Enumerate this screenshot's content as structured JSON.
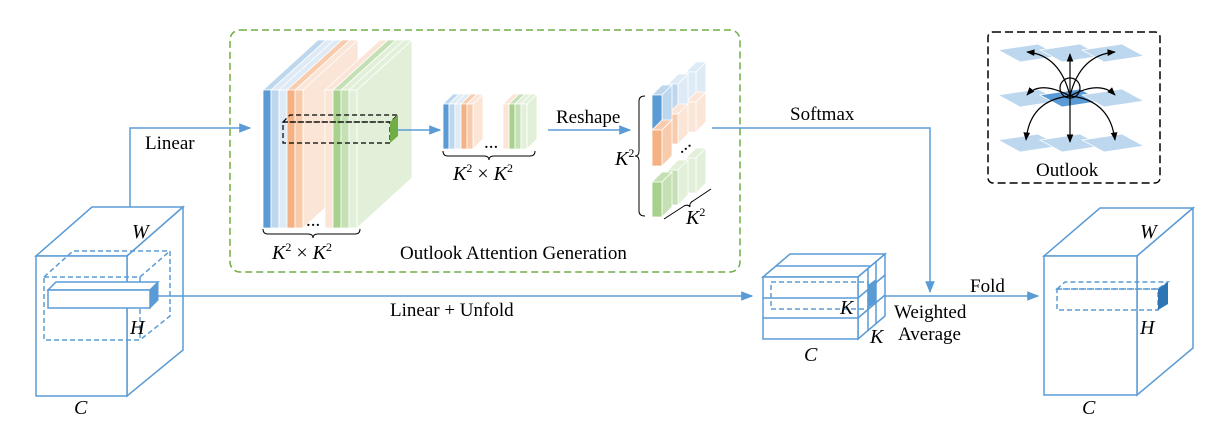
{
  "labels": {
    "linear": "Linear",
    "linear_unfold": "Linear + Unfold",
    "reshape": "Reshape",
    "softmax": "Softmax",
    "fold": "Fold",
    "weighted": "Weighted",
    "average": "Average",
    "outlook_attention_generation": "Outlook Attention Generation",
    "outlook": "Outlook",
    "dots": "...",
    "k": "K",
    "sq": "2",
    "times": "×",
    "w": "W",
    "h": "H",
    "c": "C"
  },
  "colors": {
    "line": "#5b9bd5",
    "group_border": "#70ad47",
    "blue": [
      "#5b9bd5",
      "#bdd7ee",
      "#deebf7"
    ],
    "orange": [
      "#f4b183",
      "#f8cbad",
      "#fbe5d6"
    ],
    "green": [
      "#a9d18e",
      "#c5e0b4",
      "#e2f0d9"
    ]
  }
}
